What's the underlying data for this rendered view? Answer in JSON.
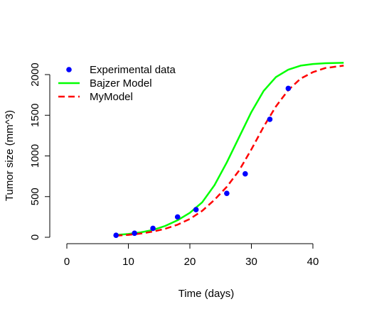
{
  "chart_data": {
    "type": "line",
    "title": "",
    "xlabel": "Time (days)",
    "ylabel": "Tumor size (mm^3)",
    "xlim": [
      0,
      45
    ],
    "ylim": [
      0,
      2150
    ],
    "xticks": [
      0,
      10,
      20,
      30,
      40
    ],
    "yticks": [
      0,
      500,
      1000,
      1500,
      2000
    ],
    "grid": false,
    "legend_position": "top-left",
    "series": [
      {
        "name": "Experimental data",
        "kind": "points",
        "color": "#0000ff",
        "x": [
          8,
          11,
          14,
          18,
          21,
          26,
          29,
          33,
          36
        ],
        "y": [
          25,
          50,
          110,
          250,
          340,
          540,
          780,
          1450,
          1830
        ]
      },
      {
        "name": "Bajzer Model",
        "kind": "line",
        "color": "#00ff00",
        "dash": "solid",
        "x": [
          8,
          10,
          12,
          14,
          16,
          18,
          20,
          22,
          24,
          26,
          28,
          30,
          32,
          34,
          36,
          38,
          40,
          42,
          45
        ],
        "y": [
          28,
          40,
          60,
          90,
          140,
          210,
          300,
          430,
          640,
          920,
          1230,
          1540,
          1800,
          1970,
          2060,
          2110,
          2130,
          2140,
          2145
        ]
      },
      {
        "name": "MyModel",
        "kind": "line",
        "color": "#ff0000",
        "dash": "dashed",
        "x": [
          8,
          10,
          12,
          14,
          16,
          18,
          20,
          22,
          24,
          26,
          28,
          30,
          32,
          34,
          36,
          38,
          40,
          42,
          45
        ],
        "y": [
          20,
          30,
          45,
          70,
          105,
          155,
          225,
          325,
          460,
          620,
          820,
          1080,
          1360,
          1610,
          1810,
          1950,
          2030,
          2080,
          2110
        ]
      }
    ]
  }
}
